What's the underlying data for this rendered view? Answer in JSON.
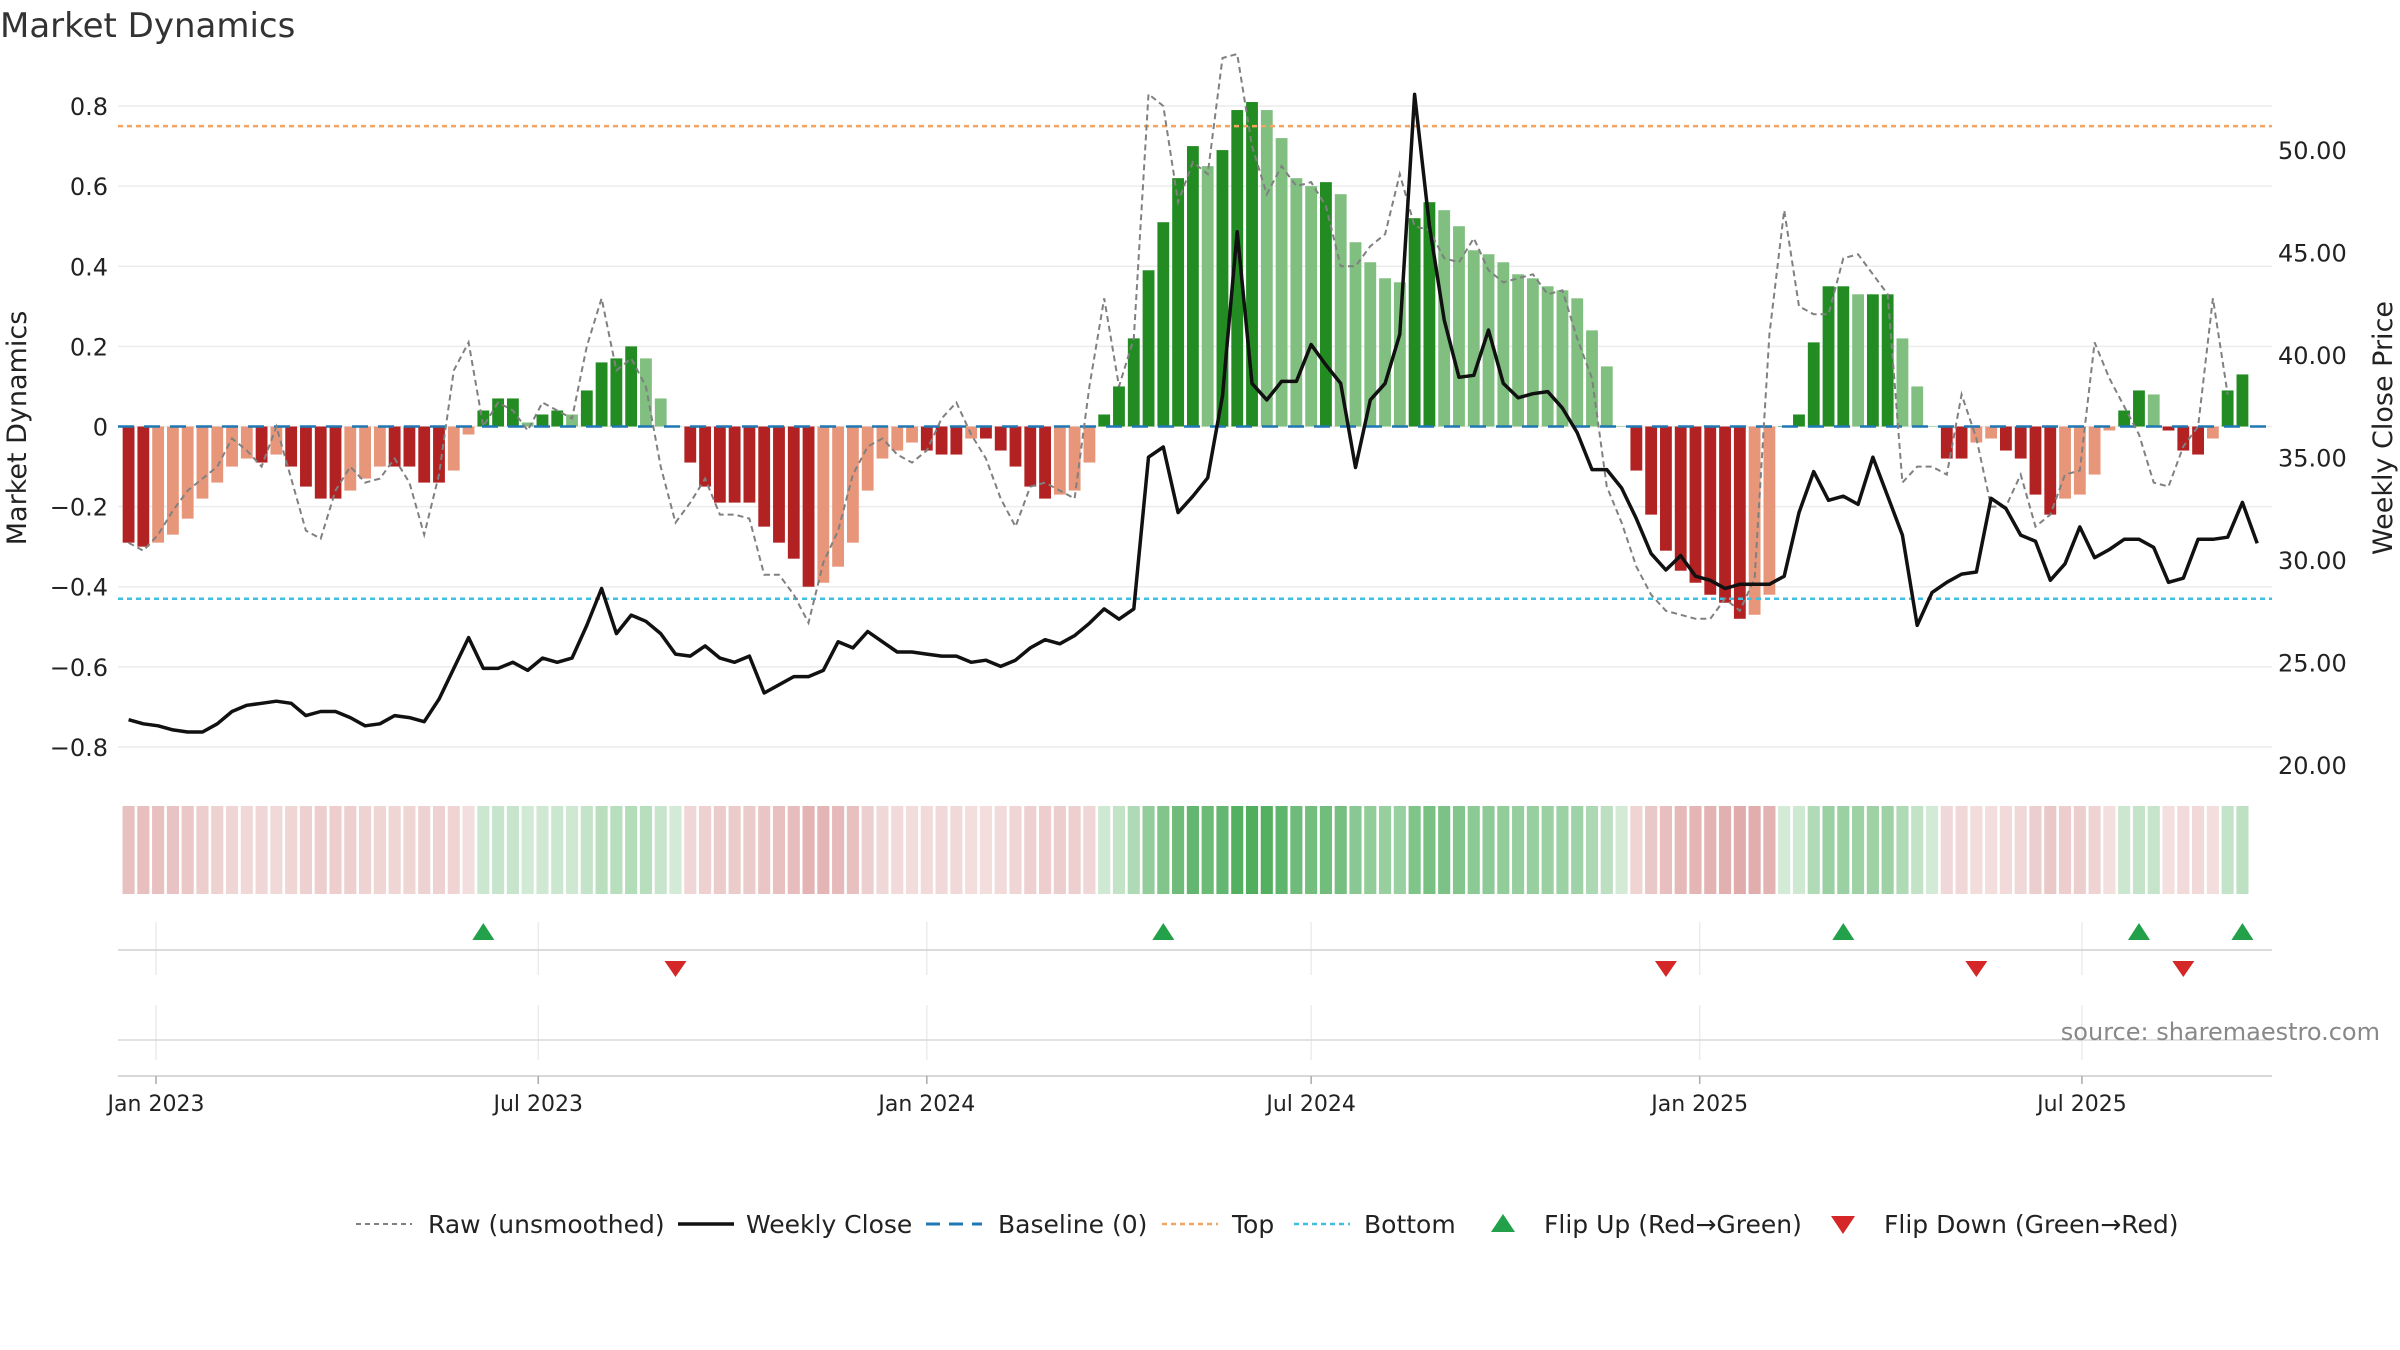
{
  "title": "Market Dynamics",
  "source": "source: sharemaestro.com",
  "colors": {
    "bar_pos_strong": "#228b22",
    "bar_pos_weak": "#80bf80",
    "bar_neg_strong": "#b22222",
    "bar_neg_weak": "#e8967a",
    "raw_line": "#808080",
    "close_line": "#111111",
    "baseline": "#1f77b4",
    "top": "#f4a460",
    "bottom": "#40bfe0",
    "flip_up": "#22a04a",
    "flip_down": "#d62728"
  },
  "chart_data": {
    "type": "bar",
    "title": "Market Dynamics",
    "ylabel": "Market Dynamics",
    "y2label": "Weekly Close Price",
    "ylim": [
      -0.87,
      0.87
    ],
    "y2lim": [
      19.5,
      53.5
    ],
    "xlim": [
      "2022-12-14",
      "2025-09-29"
    ],
    "yticks": [
      "0.8",
      "0.6",
      "0.4",
      "0.2",
      "0",
      "−0.2",
      "−0.4",
      "−0.6",
      "−0.8"
    ],
    "ytick_values": [
      0.8,
      0.6,
      0.4,
      0.2,
      0,
      -0.2,
      -0.4,
      -0.6,
      -0.8
    ],
    "y2ticks": [
      "50.00",
      "45.00",
      "40.00",
      "35.00",
      "30.00",
      "25.00",
      "20.00"
    ],
    "y2tick_values": [
      50,
      45,
      40,
      35,
      30,
      25,
      20
    ],
    "xticks": [
      "Jan 2023",
      "Jul 2023",
      "Jan 2024",
      "Jul 2024",
      "Jan 2025",
      "Jul 2025"
    ],
    "xtick_dates": [
      "2023-01-01",
      "2023-07-01",
      "2024-01-01",
      "2024-07-01",
      "2025-01-01",
      "2025-07-01"
    ],
    "start_date": "2022-12-19",
    "top_level": 0.75,
    "bottom_level": -0.43,
    "baseline_level": 0,
    "grid": true,
    "legend_position": "bottom",
    "series": [
      {
        "name": "Market Dynamics",
        "values": [
          -0.29,
          -0.3,
          -0.29,
          -0.27,
          -0.23,
          -0.18,
          -0.14,
          -0.1,
          -0.08,
          -0.09,
          -0.07,
          -0.1,
          -0.15,
          -0.18,
          -0.18,
          -0.16,
          -0.13,
          -0.1,
          -0.1,
          -0.1,
          -0.14,
          -0.14,
          -0.11,
          -0.02,
          0.04,
          0.07,
          0.07,
          0.01,
          0.03,
          0.04,
          0.03,
          0.09,
          0.16,
          0.17,
          0.2,
          0.17,
          0.07,
          0.0,
          -0.09,
          -0.15,
          -0.19,
          -0.19,
          -0.19,
          -0.25,
          -0.29,
          -0.33,
          -0.4,
          -0.39,
          -0.35,
          -0.29,
          -0.16,
          -0.08,
          -0.06,
          -0.04,
          -0.06,
          -0.07,
          -0.07,
          -0.03,
          -0.03,
          -0.06,
          -0.1,
          -0.15,
          -0.18,
          -0.17,
          -0.16,
          -0.09,
          0.03,
          0.1,
          0.22,
          0.39,
          0.51,
          0.62,
          0.7,
          0.65,
          0.69,
          0.79,
          0.81,
          0.79,
          0.72,
          0.62,
          0.6,
          0.61,
          0.58,
          0.46,
          0.41,
          0.37,
          0.36,
          0.52,
          0.56,
          0.54,
          0.5,
          0.44,
          0.43,
          0.41,
          0.38,
          0.37,
          0.35,
          0.34,
          0.32,
          0.24,
          0.15,
          0.0,
          -0.11,
          -0.22,
          -0.31,
          -0.36,
          -0.39,
          -0.42,
          -0.44,
          -0.48,
          -0.47,
          -0.42,
          0.0,
          0.03,
          0.21,
          0.35,
          0.35,
          0.33,
          0.33,
          0.33,
          0.22,
          0.1,
          0.0,
          -0.08,
          -0.08,
          -0.04,
          -0.03,
          -0.06,
          -0.08,
          -0.17,
          -0.22,
          -0.18,
          -0.17,
          -0.12,
          -0.01,
          0.04,
          0.09,
          0.08,
          -0.01,
          -0.06,
          -0.07,
          -0.03,
          0.09,
          0.13
        ]
      },
      {
        "name": "Raw (unsmoothed)",
        "values": [
          -0.29,
          -0.31,
          -0.27,
          -0.21,
          -0.16,
          -0.13,
          -0.1,
          -0.03,
          -0.06,
          -0.1,
          0.0,
          -0.13,
          -0.26,
          -0.28,
          -0.16,
          -0.1,
          -0.14,
          -0.13,
          -0.08,
          -0.14,
          -0.27,
          -0.12,
          0.14,
          0.21,
          0.0,
          0.06,
          0.04,
          -0.01,
          0.06,
          0.04,
          0.02,
          0.2,
          0.32,
          0.14,
          0.17,
          0.1,
          -0.1,
          -0.24,
          -0.19,
          -0.13,
          -0.22,
          -0.22,
          -0.23,
          -0.37,
          -0.37,
          -0.42,
          -0.49,
          -0.34,
          -0.26,
          -0.12,
          -0.05,
          -0.03,
          -0.07,
          -0.09,
          -0.06,
          0.02,
          0.06,
          -0.02,
          -0.08,
          -0.18,
          -0.25,
          -0.15,
          -0.14,
          -0.16,
          -0.18,
          0.1,
          0.32,
          0.1,
          0.22,
          0.83,
          0.8,
          0.56,
          0.66,
          0.63,
          0.92,
          0.93,
          0.7,
          0.58,
          0.65,
          0.6,
          0.61,
          0.55,
          0.4,
          0.4,
          0.45,
          0.48,
          0.63,
          0.5,
          0.49,
          0.42,
          0.41,
          0.47,
          0.39,
          0.36,
          0.37,
          0.38,
          0.33,
          0.34,
          0.22,
          0.12,
          -0.15,
          -0.24,
          -0.35,
          -0.42,
          -0.46,
          -0.47,
          -0.48,
          -0.48,
          -0.43,
          -0.46,
          -0.38,
          0.23,
          0.54,
          0.3,
          0.28,
          0.28,
          0.42,
          0.43,
          0.38,
          0.33,
          -0.14,
          -0.1,
          -0.1,
          -0.12,
          0.08,
          -0.03,
          -0.2,
          -0.2,
          -0.12,
          -0.25,
          -0.22,
          -0.12,
          -0.11,
          0.21,
          0.12,
          0.05,
          -0.02,
          -0.14,
          -0.15,
          -0.05,
          0.0,
          0.32,
          0.08
        ]
      },
      {
        "name": "Weekly Close",
        "values": [
          22.2,
          22.0,
          21.9,
          21.7,
          21.6,
          21.6,
          22.0,
          22.6,
          22.9,
          23.0,
          23.1,
          23.0,
          22.4,
          22.6,
          22.6,
          22.3,
          21.9,
          22.0,
          22.4,
          22.3,
          22.1,
          23.2,
          24.7,
          26.2,
          24.7,
          24.7,
          25.0,
          24.6,
          25.2,
          25.0,
          25.2,
          26.8,
          28.6,
          26.4,
          27.3,
          27.0,
          26.4,
          25.4,
          25.3,
          25.8,
          25.2,
          25.0,
          25.3,
          23.5,
          23.9,
          24.3,
          24.3,
          24.6,
          26.0,
          25.7,
          26.5,
          26.0,
          25.5,
          25.5,
          25.4,
          25.3,
          25.3,
          25.0,
          25.1,
          24.8,
          25.1,
          25.7,
          26.1,
          25.9,
          26.3,
          26.9,
          27.6,
          27.1,
          27.6,
          35.0,
          35.5,
          32.3,
          33.1,
          34.0,
          38.0,
          46.0,
          38.6,
          37.8,
          38.7,
          38.7,
          40.5,
          39.5,
          38.6,
          34.5,
          37.8,
          38.6,
          41.0,
          52.7,
          46.3,
          41.7,
          38.9,
          39.0,
          41.2,
          38.6,
          37.9,
          38.1,
          38.2,
          37.4,
          36.2,
          34.4,
          34.4,
          33.5,
          32.0,
          30.3,
          29.5,
          30.2,
          29.2,
          29.0,
          28.6,
          28.8,
          28.8,
          28.8,
          29.2,
          32.3,
          34.3,
          32.9,
          33.1,
          32.7,
          35.0,
          33.1,
          31.2,
          26.8,
          28.4,
          28.9,
          29.3,
          29.4,
          33.0,
          32.5,
          31.2,
          30.9,
          29.0,
          29.8,
          31.6,
          30.1,
          30.5,
          31.0,
          31.0,
          30.6,
          28.9,
          29.1,
          31.0,
          31.0,
          31.1,
          32.8,
          30.8
        ]
      },
      {
        "name": "Baseline (0)"
      },
      {
        "name": "Top"
      },
      {
        "name": "Bottom"
      }
    ],
    "markers": [
      {
        "name": "Flip Up (Red→Green)",
        "dates": [
          "2023-06-05",
          "2024-04-22",
          "2025-03-10",
          "2025-07-28",
          "2025-09-15"
        ]
      },
      {
        "name": "Flip Down (Green→Red)",
        "dates": [
          "2023-09-04",
          "2024-12-16",
          "2025-05-12",
          "2025-08-18"
        ]
      }
    ]
  }
}
